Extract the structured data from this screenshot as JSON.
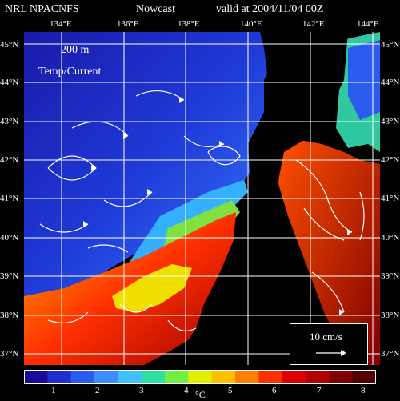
{
  "header": {
    "left": "NRL NPACNFS",
    "middle": "Nowcast",
    "right": "valid at 2004/11/04 00Z"
  },
  "map": {
    "depth_label": "200 m",
    "field_label": "Temp/Current",
    "lon_labels": [
      "134°E",
      "136°E",
      "138°E",
      "140°E",
      "142°E",
      "144°E"
    ],
    "lat_labels_left": [
      "45°N",
      "44°N",
      "43°N",
      "42°N",
      "41°N",
      "40°N",
      "39°N",
      "38°N",
      "37°N"
    ],
    "lat_labels_right": [
      "45°N",
      "44°N",
      "43°N",
      "42°N",
      "41°N",
      "40°N",
      "39°N",
      "38°N",
      "37°N"
    ]
  },
  "legend": {
    "vector_scale_label": "10 cm/s",
    "colorbar_labels": [
      "1",
      "2",
      "3",
      "4",
      "5",
      "6",
      "7",
      "8"
    ],
    "unit": "°C"
  },
  "colors": {
    "land": "#000000",
    "grid": "#ffffff",
    "colorbar": [
      "#1a0a9a",
      "#1e2fd0",
      "#2a5cf0",
      "#3b8cff",
      "#40c0ff",
      "#30e0a0",
      "#70f040",
      "#e0f000",
      "#ffc000",
      "#ff8000",
      "#ff3000",
      "#e00000",
      "#b00000",
      "#800000",
      "#500000"
    ]
  }
}
